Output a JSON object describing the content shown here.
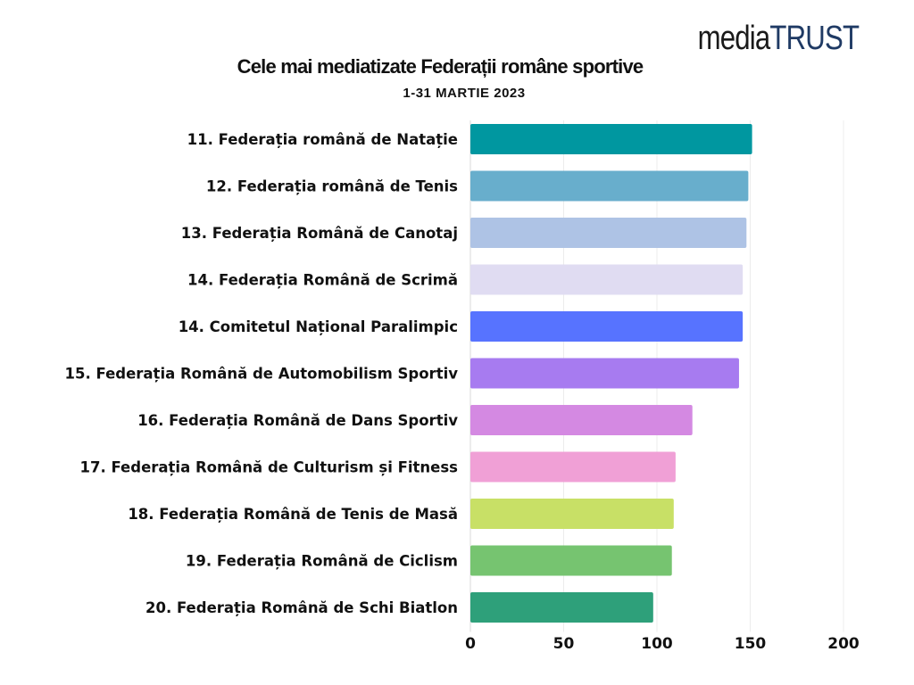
{
  "logo": {
    "part1": "media",
    "part2": "TRUST"
  },
  "chart_data": {
    "type": "bar",
    "orientation": "horizontal",
    "title": "Cele mai mediatizate Federații române sportive",
    "subtitle": "1-31 MARTIE 2023",
    "categories": [
      "11. Federația română de Natație",
      "12. Federația română de Tenis",
      "13. Federația Română de Canotaj",
      "14. Federația Română de Scrimă",
      "14. Comitetul Național Paralimpic",
      "15. Federația Română de Automobilism Sportiv",
      "16. Federația Română de Dans Sportiv",
      "17. Federația Română de Culturism și Fitness",
      "18. Federația Română de Tenis  de Masă",
      "19. Federația Română de Ciclism",
      "20. Federația Română de Schi Biatlon"
    ],
    "values": [
      151,
      149,
      148,
      146,
      146,
      144,
      119,
      110,
      109,
      108,
      98
    ],
    "colors": [
      "#0097A0",
      "#68AECC",
      "#AEC3E5",
      "#E0DCF2",
      "#5773FF",
      "#A77BF0",
      "#D489E2",
      "#F0A0D6",
      "#C8E066",
      "#76C470",
      "#2EA07A"
    ],
    "xlim": [
      0,
      200
    ],
    "xticks": [
      0,
      50,
      100,
      150,
      200
    ],
    "grid": true
  }
}
